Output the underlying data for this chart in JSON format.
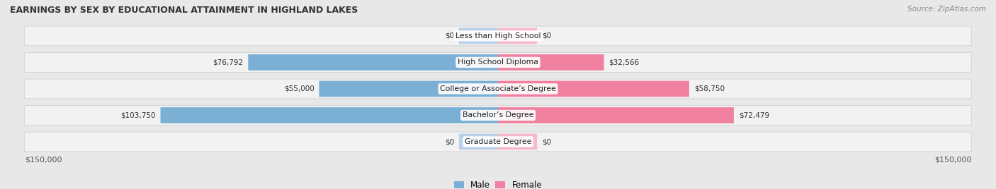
{
  "title": "EARNINGS BY SEX BY EDUCATIONAL ATTAINMENT IN HIGHLAND LAKES",
  "source": "Source: ZipAtlas.com",
  "categories": [
    "Less than High School",
    "High School Diploma",
    "College or Associate’s Degree",
    "Bachelor’s Degree",
    "Graduate Degree"
  ],
  "male_values": [
    0,
    76792,
    55000,
    103750,
    0
  ],
  "female_values": [
    0,
    32566,
    58750,
    72479,
    0
  ],
  "male_labels": [
    "$0",
    "$76,792",
    "$55,000",
    "$103,750",
    "$0"
  ],
  "female_labels": [
    "$0",
    "$32,566",
    "$58,750",
    "$72,479",
    "$0"
  ],
  "male_color": "#7bafd4",
  "female_color": "#f080a0",
  "male_color_light": "#b8d0e8",
  "female_color_light": "#f5b8cc",
  "max_value": 150000,
  "stub_value": 12000,
  "x_label_left": "$150,000",
  "x_label_right": "$150,000",
  "legend_male": "Male",
  "legend_female": "Female",
  "bg_color": "#e8e8e8",
  "row_bg_color": "#f2f2f2"
}
